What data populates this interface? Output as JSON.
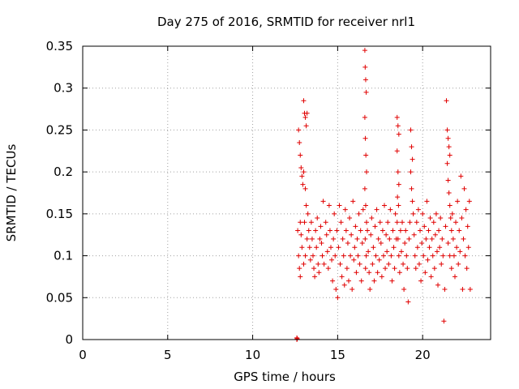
{
  "chart_data": {
    "type": "scatter",
    "title": "Day 275 of 2016, SRMTID for receiver nrl1",
    "xlabel": "GPS time / hours",
    "ylabel": "SRMTID / TECUs",
    "xlim": [
      0,
      24
    ],
    "ylim": [
      0,
      0.35
    ],
    "xticks": [
      0,
      5,
      10,
      15,
      20
    ],
    "xtick_labels": [
      "0",
      "5",
      "10",
      "15",
      "20"
    ],
    "yticks": [
      0,
      0.05,
      0.1,
      0.15,
      0.2,
      0.25,
      0.3,
      0.35
    ],
    "ytick_labels": [
      "0",
      "0.05",
      "0.1",
      "0.15",
      "0.2",
      "0.25",
      "0.3",
      "0.35"
    ],
    "grid": true,
    "legend": "none",
    "marker": "+",
    "color": "#e00000",
    "series": [
      {
        "values": [
          [
            12.6,
            0.0
          ],
          [
            12.6,
            0.002
          ],
          [
            12.62,
            0.001
          ],
          [
            12.7,
            0.25
          ],
          [
            12.75,
            0.235
          ],
          [
            12.8,
            0.22
          ],
          [
            12.85,
            0.205
          ],
          [
            12.9,
            0.195
          ],
          [
            12.95,
            0.185
          ],
          [
            12.8,
            0.14
          ],
          [
            12.85,
            0.125
          ],
          [
            12.9,
            0.11
          ],
          [
            12.7,
            0.1
          ],
          [
            12.75,
            0.085
          ],
          [
            12.8,
            0.075
          ],
          [
            12.65,
            0.13
          ],
          [
            13.0,
            0.285
          ],
          [
            13.05,
            0.27
          ],
          [
            13.1,
            0.265
          ],
          [
            13.15,
            0.255
          ],
          [
            13.2,
            0.27
          ],
          [
            13.0,
            0.2
          ],
          [
            13.1,
            0.18
          ],
          [
            13.15,
            0.16
          ],
          [
            13.05,
            0.14
          ],
          [
            13.2,
            0.12
          ],
          [
            13.1,
            0.1
          ],
          [
            13.0,
            0.09
          ],
          [
            13.25,
            0.15
          ],
          [
            13.3,
            0.13
          ],
          [
            13.35,
            0.11
          ],
          [
            13.4,
            0.095
          ],
          [
            13.45,
            0.14
          ],
          [
            13.5,
            0.12
          ],
          [
            13.55,
            0.1
          ],
          [
            13.6,
            0.085
          ],
          [
            13.65,
            0.075
          ],
          [
            13.7,
            0.13
          ],
          [
            13.75,
            0.11
          ],
          [
            13.8,
            0.145
          ],
          [
            13.85,
            0.09
          ],
          [
            13.9,
            0.08
          ],
          [
            13.95,
            0.12
          ],
          [
            14.0,
            0.135
          ],
          [
            14.05,
            0.115
          ],
          [
            14.1,
            0.1
          ],
          [
            14.15,
            0.165
          ],
          [
            14.2,
            0.09
          ],
          [
            14.3,
            0.14
          ],
          [
            14.35,
            0.125
          ],
          [
            14.4,
            0.105
          ],
          [
            14.45,
            0.085
          ],
          [
            14.5,
            0.16
          ],
          [
            14.55,
            0.13
          ],
          [
            14.6,
            0.11
          ],
          [
            14.65,
            0.095
          ],
          [
            14.7,
            0.07
          ],
          [
            14.75,
            0.12
          ],
          [
            14.8,
            0.15
          ],
          [
            14.85,
            0.1
          ],
          [
            14.9,
            0.06
          ],
          [
            14.95,
            0.13
          ],
          [
            15.0,
            0.05
          ],
          [
            15.05,
            0.11
          ],
          [
            15.1,
            0.16
          ],
          [
            15.15,
            0.09
          ],
          [
            15.2,
            0.14
          ],
          [
            15.25,
            0.075
          ],
          [
            15.3,
            0.12
          ],
          [
            15.35,
            0.1
          ],
          [
            15.4,
            0.065
          ],
          [
            15.45,
            0.155
          ],
          [
            15.5,
            0.13
          ],
          [
            15.55,
            0.085
          ],
          [
            15.6,
            0.115
          ],
          [
            15.65,
            0.07
          ],
          [
            15.7,
            0.145
          ],
          [
            15.75,
            0.1
          ],
          [
            15.8,
            0.125
          ],
          [
            15.85,
            0.06
          ],
          [
            15.9,
            0.165
          ],
          [
            15.95,
            0.095
          ],
          [
            16.0,
            0.11
          ],
          [
            16.05,
            0.135
          ],
          [
            16.1,
            0.08
          ],
          [
            16.15,
            0.12
          ],
          [
            16.2,
            0.1
          ],
          [
            16.25,
            0.15
          ],
          [
            16.3,
            0.09
          ],
          [
            16.35,
            0.13
          ],
          [
            16.4,
            0.07
          ],
          [
            16.45,
            0.115
          ],
          [
            16.5,
            0.155
          ],
          [
            16.6,
            0.345
          ],
          [
            16.62,
            0.325
          ],
          [
            16.65,
            0.31
          ],
          [
            16.68,
            0.295
          ],
          [
            16.6,
            0.265
          ],
          [
            16.63,
            0.24
          ],
          [
            16.66,
            0.22
          ],
          [
            16.7,
            0.2
          ],
          [
            16.6,
            0.18
          ],
          [
            16.65,
            0.16
          ],
          [
            16.7,
            0.14
          ],
          [
            16.62,
            0.12
          ],
          [
            16.68,
            0.1
          ],
          [
            16.64,
            0.085
          ],
          [
            16.75,
            0.13
          ],
          [
            16.8,
            0.105
          ],
          [
            16.85,
            0.08
          ],
          [
            16.9,
            0.06
          ],
          [
            16.95,
            0.125
          ],
          [
            17.0,
            0.145
          ],
          [
            17.05,
            0.09
          ],
          [
            17.1,
            0.11
          ],
          [
            17.15,
            0.07
          ],
          [
            17.2,
            0.135
          ],
          [
            17.25,
            0.1
          ],
          [
            17.3,
            0.155
          ],
          [
            17.35,
            0.08
          ],
          [
            17.4,
            0.12
          ],
          [
            17.45,
            0.095
          ],
          [
            17.5,
            0.14
          ],
          [
            17.55,
            0.115
          ],
          [
            17.6,
            0.075
          ],
          [
            17.65,
            0.13
          ],
          [
            17.7,
            0.1
          ],
          [
            17.75,
            0.16
          ],
          [
            17.8,
            0.085
          ],
          [
            17.85,
            0.125
          ],
          [
            17.9,
            0.105
          ],
          [
            17.95,
            0.14
          ],
          [
            18.0,
            0.09
          ],
          [
            18.05,
            0.12
          ],
          [
            18.1,
            0.155
          ],
          [
            18.15,
            0.1
          ],
          [
            18.2,
            0.07
          ],
          [
            18.25,
            0.13
          ],
          [
            18.3,
            0.11
          ],
          [
            18.35,
            0.085
          ],
          [
            18.4,
            0.15
          ],
          [
            18.45,
            0.12
          ],
          [
            18.5,
            0.265
          ],
          [
            18.55,
            0.255
          ],
          [
            18.6,
            0.245
          ],
          [
            18.5,
            0.225
          ],
          [
            18.55,
            0.2
          ],
          [
            18.6,
            0.185
          ],
          [
            18.52,
            0.17
          ],
          [
            18.58,
            0.16
          ],
          [
            18.5,
            0.14
          ],
          [
            18.55,
            0.12
          ],
          [
            18.6,
            0.1
          ],
          [
            18.65,
            0.08
          ],
          [
            18.7,
            0.13
          ],
          [
            18.75,
            0.105
          ],
          [
            18.8,
            0.14
          ],
          [
            18.85,
            0.09
          ],
          [
            18.9,
            0.06
          ],
          [
            18.95,
            0.115
          ],
          [
            19.0,
            0.13
          ],
          [
            19.05,
            0.1
          ],
          [
            19.1,
            0.085
          ],
          [
            19.15,
            0.045
          ],
          [
            19.2,
            0.12
          ],
          [
            19.25,
            0.14
          ],
          [
            19.3,
            0.25
          ],
          [
            19.35,
            0.23
          ],
          [
            19.4,
            0.215
          ],
          [
            19.3,
            0.2
          ],
          [
            19.35,
            0.18
          ],
          [
            19.4,
            0.165
          ],
          [
            19.45,
            0.15
          ],
          [
            19.5,
            0.125
          ],
          [
            19.55,
            0.1
          ],
          [
            19.6,
            0.085
          ],
          [
            19.65,
            0.14
          ],
          [
            19.7,
            0.11
          ],
          [
            19.75,
            0.155
          ],
          [
            19.8,
            0.09
          ],
          [
            19.85,
            0.13
          ],
          [
            19.9,
            0.07
          ],
          [
            19.95,
            0.115
          ],
          [
            20.0,
            0.15
          ],
          [
            20.05,
            0.1
          ],
          [
            20.1,
            0.135
          ],
          [
            20.15,
            0.08
          ],
          [
            20.2,
            0.12
          ],
          [
            20.25,
            0.165
          ],
          [
            20.3,
            0.095
          ],
          [
            20.35,
            0.13
          ],
          [
            20.4,
            0.11
          ],
          [
            20.45,
            0.145
          ],
          [
            20.5,
            0.075
          ],
          [
            20.55,
            0.12
          ],
          [
            20.6,
            0.1
          ],
          [
            20.65,
            0.14
          ],
          [
            20.7,
            0.085
          ],
          [
            20.75,
            0.125
          ],
          [
            20.8,
            0.15
          ],
          [
            20.85,
            0.105
          ],
          [
            20.9,
            0.065
          ],
          [
            20.95,
            0.13
          ],
          [
            21.0,
            0.11
          ],
          [
            21.05,
            0.145
          ],
          [
            21.1,
            0.09
          ],
          [
            21.15,
            0.12
          ],
          [
            21.2,
            0.1
          ],
          [
            21.25,
            0.022
          ],
          [
            21.3,
            0.06
          ],
          [
            21.35,
            0.135
          ],
          [
            21.4,
            0.285
          ],
          [
            21.45,
            0.25
          ],
          [
            21.5,
            0.24
          ],
          [
            21.55,
            0.23
          ],
          [
            21.6,
            0.22
          ],
          [
            21.45,
            0.21
          ],
          [
            21.5,
            0.19
          ],
          [
            21.55,
            0.175
          ],
          [
            21.6,
            0.16
          ],
          [
            21.65,
            0.145
          ],
          [
            21.7,
            0.13
          ],
          [
            21.5,
            0.115
          ],
          [
            21.6,
            0.1
          ],
          [
            21.7,
            0.085
          ],
          [
            21.75,
            0.15
          ],
          [
            21.8,
            0.12
          ],
          [
            21.85,
            0.1
          ],
          [
            21.9,
            0.075
          ],
          [
            21.95,
            0.14
          ],
          [
            22.0,
            0.11
          ],
          [
            22.05,
            0.165
          ],
          [
            22.1,
            0.09
          ],
          [
            22.15,
            0.13
          ],
          [
            22.2,
            0.105
          ],
          [
            22.25,
            0.195
          ],
          [
            22.3,
            0.145
          ],
          [
            22.35,
            0.06
          ],
          [
            22.4,
            0.12
          ],
          [
            22.45,
            0.18
          ],
          [
            22.5,
            0.1
          ],
          [
            22.55,
            0.155
          ],
          [
            22.6,
            0.085
          ],
          [
            22.65,
            0.135
          ],
          [
            22.7,
            0.11
          ],
          [
            22.75,
            0.165
          ],
          [
            22.8,
            0.06
          ]
        ]
      }
    ]
  }
}
